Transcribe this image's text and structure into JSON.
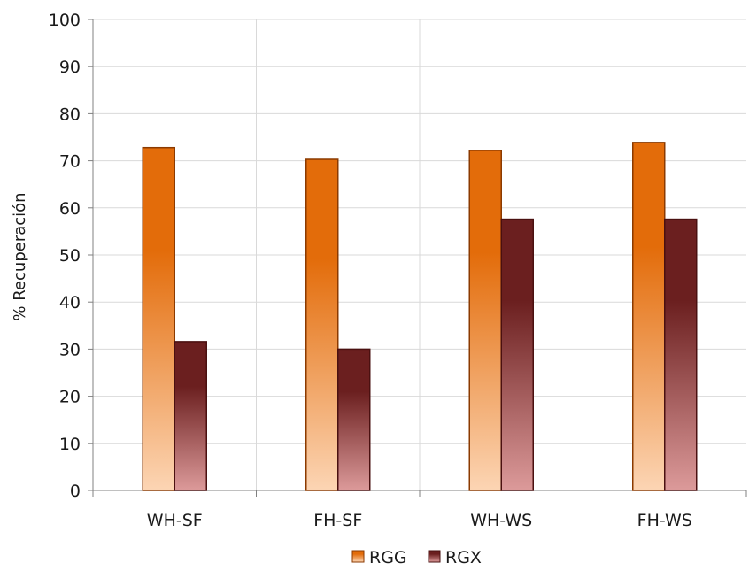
{
  "chart_data": {
    "type": "bar",
    "ylabel": "% Recuperación",
    "xlabel": "",
    "ylim": [
      0,
      100
    ],
    "yticks": [
      0,
      10,
      20,
      30,
      40,
      50,
      60,
      70,
      80,
      90,
      100
    ],
    "categories": [
      "WH-SF",
      "FH-SF",
      "WH-WS",
      "FH-WS"
    ],
    "series": [
      {
        "name": "RGG",
        "values": [
          72.8,
          70.3,
          72.2,
          73.9
        ],
        "color_top": "#e36c0a",
        "color_bottom": "#fcd5b4",
        "stroke": "#8b3a00"
      },
      {
        "name": "RGX",
        "values": [
          31.6,
          30.0,
          57.6,
          57.6
        ],
        "color_top": "#6b1f1f",
        "color_bottom": "#dc9a9a",
        "stroke": "#4a1010"
      }
    ],
    "grid": true,
    "legend_position": "bottom"
  }
}
